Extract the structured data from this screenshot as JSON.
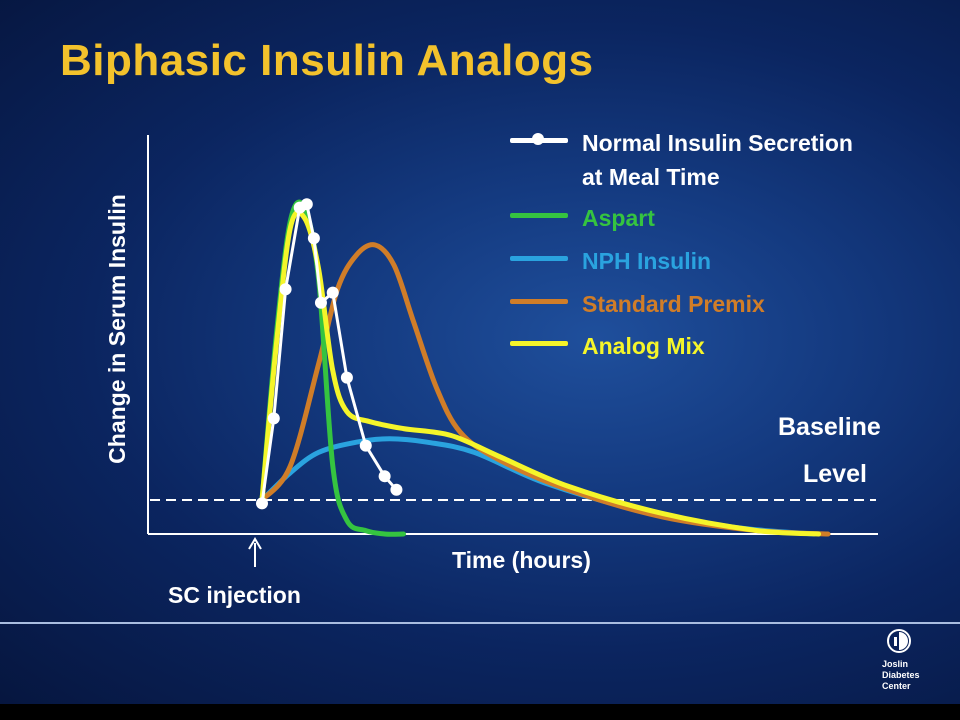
{
  "slide": {
    "title": "Biphasic Insulin Analogs",
    "logo_text": "Joslin Diabetes Center",
    "logo_icon": "joslin-logo-icon"
  },
  "colors": {
    "title": "#f3c22c",
    "normal": "#ffffff",
    "aspart": "#35c440",
    "nph": "#2aa3df",
    "premix": "#d07d28",
    "analog": "#f5f52a",
    "baseline": "#ffffff"
  },
  "chart_data": {
    "type": "line",
    "title": "Biphasic Insulin Analogs",
    "xlabel": "Time (hours)",
    "ylabel": "Change in Serum Insulin",
    "annotations": {
      "injection": "SC injection",
      "baseline_line1": "Baseline",
      "baseline_line2": "Level"
    },
    "xlim": [
      0,
      12
    ],
    "ylim": [
      -1,
      10
    ],
    "baseline": 0,
    "injection_x": 0,
    "legend_position": "top-right",
    "grid": false,
    "series": [
      {
        "key": "normal",
        "name": "Normal Insulin Secretion at Meal Time",
        "name_lines": [
          "Normal Insulin Secretion",
          "at Meal Time"
        ],
        "markers": true,
        "x": [
          0.0,
          0.25,
          0.5,
          0.8,
          0.95,
          1.1,
          1.25,
          1.5,
          1.8,
          2.2,
          2.6,
          2.85
        ],
        "y": [
          -0.1,
          2.4,
          6.2,
          8.6,
          8.7,
          7.7,
          5.8,
          6.1,
          3.6,
          1.6,
          0.7,
          0.3
        ]
      },
      {
        "key": "aspart",
        "name": "Aspart",
        "markers": false,
        "x": [
          0.0,
          0.3,
          0.6,
          0.9,
          1.2,
          1.5,
          1.8,
          2.2,
          2.6,
          3.0
        ],
        "y": [
          0.0,
          4.8,
          8.2,
          8.6,
          6.5,
          1.0,
          -0.6,
          -0.9,
          -1.0,
          -1.0
        ]
      },
      {
        "key": "nph",
        "name": "NPH Insulin",
        "markers": false,
        "x": [
          0.0,
          0.6,
          1.2,
          2.0,
          2.7,
          3.5,
          4.5,
          6.0,
          8.0,
          10.0,
          11.7
        ],
        "y": [
          0.0,
          0.8,
          1.4,
          1.7,
          1.8,
          1.7,
          1.4,
          0.5,
          -0.3,
          -0.8,
          -1.0
        ]
      },
      {
        "key": "premix",
        "name": "Standard Premix",
        "markers": false,
        "x": [
          0.0,
          0.6,
          1.2,
          1.6,
          2.0,
          2.4,
          2.8,
          3.2,
          3.7,
          4.2,
          5.0,
          6.5,
          8.5,
          10.5,
          12.0
        ],
        "y": [
          0.0,
          1.0,
          4.0,
          6.2,
          7.2,
          7.5,
          6.9,
          5.3,
          3.3,
          2.0,
          1.2,
          0.3,
          -0.5,
          -0.9,
          -1.0
        ]
      },
      {
        "key": "analog",
        "name": "Analog Mix",
        "markers": false,
        "x": [
          0.0,
          0.3,
          0.6,
          0.9,
          1.2,
          1.5,
          1.8,
          2.3,
          3.0,
          4.0,
          5.0,
          6.5,
          8.5,
          10.5,
          11.8
        ],
        "y": [
          0.0,
          4.5,
          8.0,
          8.3,
          6.8,
          3.8,
          2.6,
          2.3,
          2.1,
          1.9,
          1.3,
          0.4,
          -0.4,
          -0.9,
          -1.0
        ]
      }
    ]
  }
}
